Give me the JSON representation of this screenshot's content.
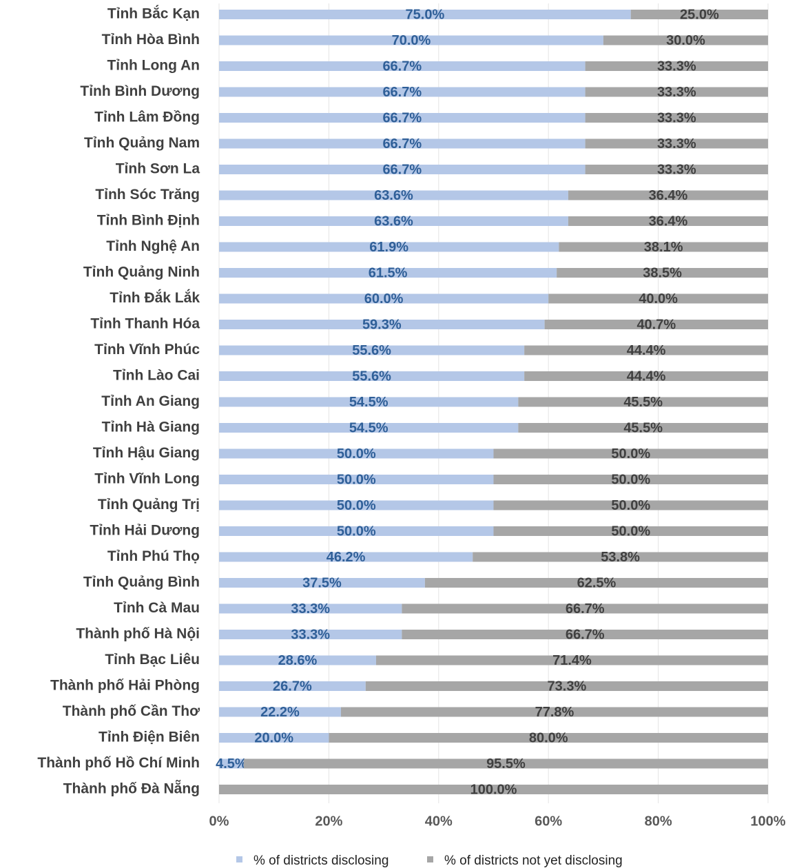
{
  "chart_data": {
    "type": "stacked_bar_horizontal",
    "categories": [
      "Tỉnh Bắc Kạn",
      "Tỉnh Hòa Bình",
      "Tỉnh Long An",
      "Tỉnh Bình Dương",
      "Tỉnh Lâm Đồng",
      "Tỉnh Quảng Nam",
      "Tỉnh Sơn La",
      "Tỉnh Sóc Trăng",
      "Tỉnh Bình Định",
      "Tỉnh Nghệ An",
      "Tỉnh Quảng Ninh",
      "Tỉnh Đắk Lắk",
      "Tỉnh Thanh Hóa",
      "Tỉnh Vĩnh Phúc",
      "Tỉnh Lào Cai",
      "Tỉnh An Giang",
      "Tỉnh Hà Giang",
      "Tỉnh Hậu Giang",
      "Tỉnh Vĩnh Long",
      "Tỉnh Quảng Trị",
      "Tỉnh Hải Dương",
      "Tỉnh Phú Thọ",
      "Tỉnh Quảng Bình",
      "Tỉnh Cà Mau",
      "Thành phố Hà Nội",
      "Tỉnh Bạc Liêu",
      "Thành phố Hải Phòng",
      "Thành phố Cần Thơ",
      "Tỉnh Điện Biên",
      "Thành phố Hồ Chí Minh",
      "Thành phố Đà Nẵng"
    ],
    "series": [
      {
        "name": "% of districts disclosing",
        "color": "#b4c7e7",
        "label_color": "#2f5f98",
        "values": [
          75.0,
          70.0,
          66.7,
          66.7,
          66.7,
          66.7,
          66.7,
          63.6,
          63.6,
          61.9,
          61.5,
          60.0,
          59.3,
          55.6,
          55.6,
          54.5,
          54.5,
          50.0,
          50.0,
          50.0,
          50.0,
          46.2,
          37.5,
          33.3,
          33.3,
          28.6,
          26.7,
          22.2,
          20.0,
          4.5,
          0
        ],
        "value_labels": [
          "75.0%",
          "70.0%",
          "66.7%",
          "66.7%",
          "66.7%",
          "66.7%",
          "66.7%",
          "63.6%",
          "63.6%",
          "61.9%",
          "61.5%",
          "60.0%",
          "59.3%",
          "55.6%",
          "55.6%",
          "54.5%",
          "54.5%",
          "50.0%",
          "50.0%",
          "50.0%",
          "50.0%",
          "46.2%",
          "37.5%",
          "33.3%",
          "33.3%",
          "28.6%",
          "26.7%",
          "22.2%",
          "20.0%",
          "4.5%",
          null
        ]
      },
      {
        "name": "% of districts not yet disclosing",
        "color": "#a6a6a6",
        "label_color": "#404040",
        "values": [
          25.0,
          30.0,
          33.3,
          33.3,
          33.3,
          33.3,
          33.3,
          36.4,
          36.4,
          38.1,
          38.5,
          40.0,
          40.7,
          44.4,
          44.4,
          45.5,
          45.5,
          50.0,
          50.0,
          50.0,
          50.0,
          53.8,
          62.5,
          66.7,
          66.7,
          71.4,
          73.3,
          77.8,
          80.0,
          95.5,
          100.0
        ],
        "value_labels": [
          "25.0%",
          "30.0%",
          "33.3%",
          "33.3%",
          "33.3%",
          "33.3%",
          "33.3%",
          "36.4%",
          "36.4%",
          "38.1%",
          "38.5%",
          "40.0%",
          "40.7%",
          "44.4%",
          "44.4%",
          "45.5%",
          "45.5%",
          "50.0%",
          "50.0%",
          "50.0%",
          "50.0%",
          "53.8%",
          "62.5%",
          "66.7%",
          "66.7%",
          "71.4%",
          "73.3%",
          "77.8%",
          "80.0%",
          "95.5%",
          "100.0%"
        ]
      }
    ],
    "xlim": [
      0,
      100
    ],
    "xticks": [
      {
        "value": 0,
        "label": "0%"
      },
      {
        "value": 20,
        "label": "20%"
      },
      {
        "value": 40,
        "label": "40%"
      },
      {
        "value": 60,
        "label": "60%"
      },
      {
        "value": 80,
        "label": "80%"
      },
      {
        "value": 100,
        "label": "100%"
      }
    ],
    "grid": true,
    "legend": "bottom"
  }
}
